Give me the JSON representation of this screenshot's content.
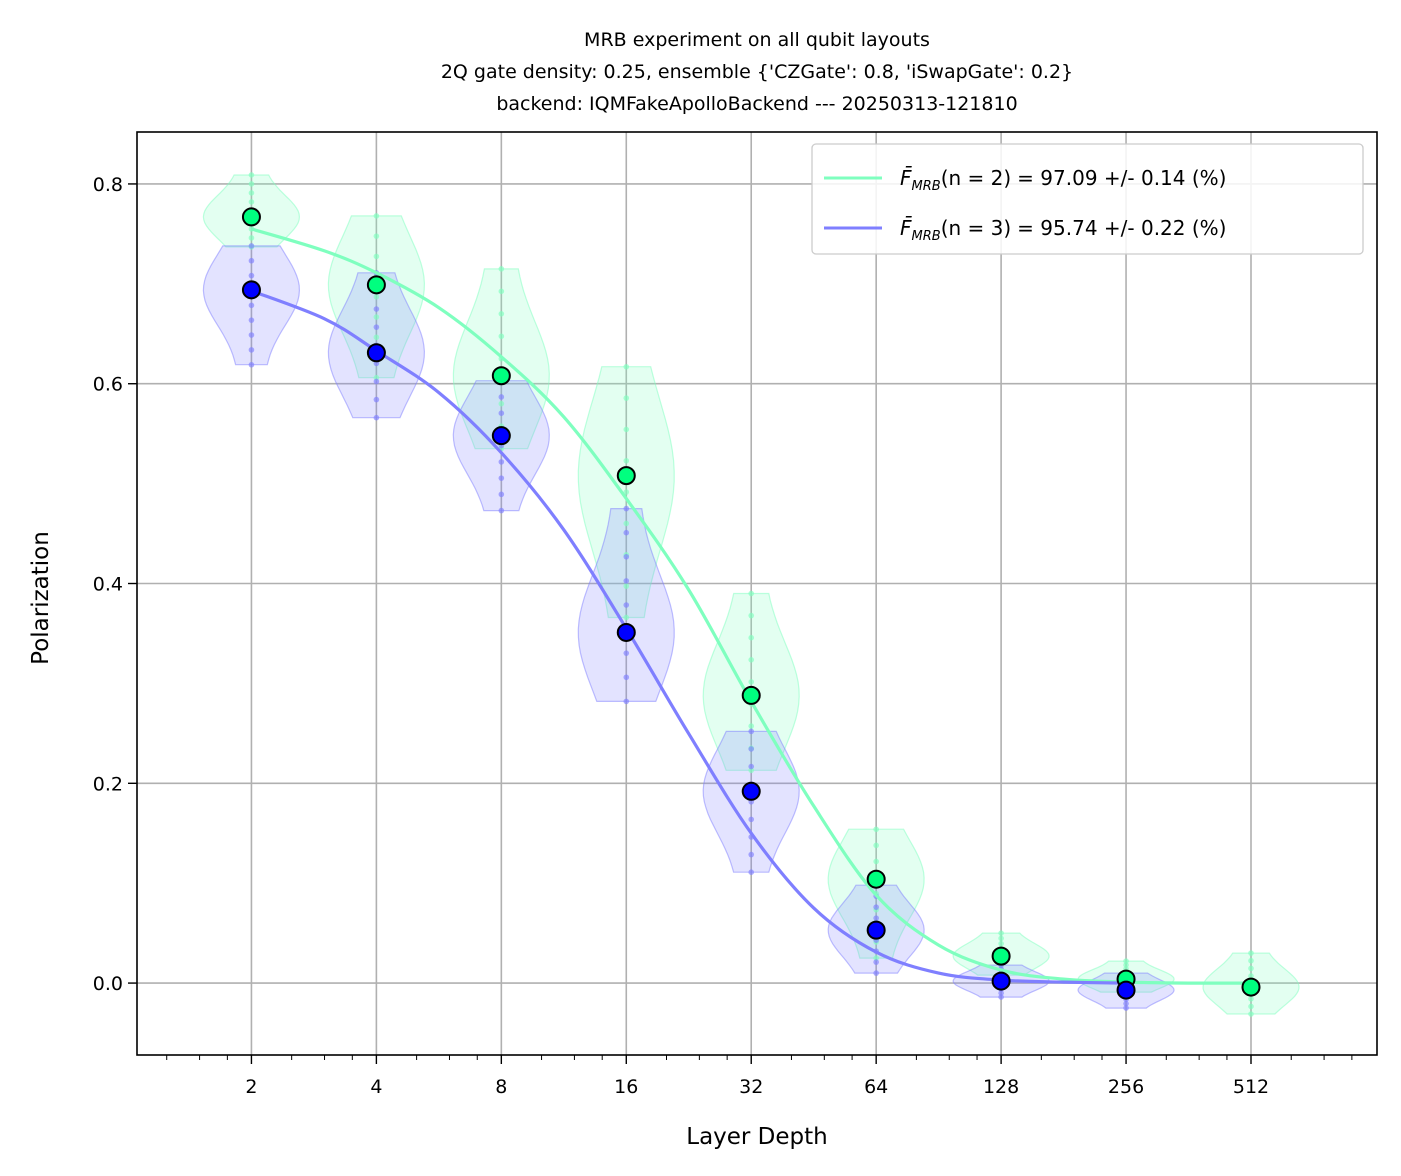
{
  "chart_data": {
    "type": "scatter",
    "title_lines": [
      "MRB experiment on all qubit layouts",
      "2Q gate density: 0.25, ensemble {'CZGate': 0.8, 'iSwapGate': 0.2}",
      "backend: IQMFakeApolloBackend --- 20250313-121810"
    ],
    "xlabel": "Layer Depth",
    "ylabel": "Polarization",
    "xscale": "log2",
    "xlim": [
      1.06,
      1030
    ],
    "ylim": [
      -0.072,
      0.852
    ],
    "x_ticks": [
      2,
      4,
      8,
      16,
      32,
      64,
      128,
      256,
      512
    ],
    "x_tick_labels": [
      "2",
      "4",
      "8",
      "16",
      "32",
      "64",
      "128",
      "256",
      "512"
    ],
    "y_ticks": [
      0.0,
      0.2,
      0.4,
      0.6,
      0.8
    ],
    "y_tick_labels": [
      "0.0",
      "0.2",
      "0.4",
      "0.6",
      "0.8"
    ],
    "grid": true,
    "legend_position": "top-right",
    "series": [
      {
        "name": "n=2",
        "legend_label": "= 97.09 +/- 0.14 (%)",
        "legend_symbol": "F̄",
        "legend_sub": "MRB",
        "legend_arg": "(n = 2)",
        "color": "#7fffbf",
        "marker_color": "#00ff7f",
        "depths": [
          2,
          4,
          8,
          16,
          32,
          64,
          128,
          256,
          512
        ],
        "mean_values": [
          0.767,
          0.699,
          0.608,
          0.508,
          0.288,
          0.104,
          0.027,
          0.004,
          -0.004
        ],
        "fit_curve": {
          "x": [
            2,
            3,
            4,
            5.66,
            8,
            11.3,
            16,
            22.6,
            32,
            45.3,
            64,
            90.5,
            128,
            181,
            256,
            362,
            512
          ],
          "y": [
            0.755,
            0.733,
            0.711,
            0.676,
            0.627,
            0.567,
            0.485,
            0.394,
            0.282,
            0.177,
            0.088,
            0.038,
            0.013,
            0.004,
            0.001,
            0.0,
            0.0
          ]
        },
        "violins": [
          {
            "x": 2,
            "min": 0.737,
            "max": 0.809
          },
          {
            "x": 4,
            "min": 0.606,
            "max": 0.768
          },
          {
            "x": 8,
            "min": 0.535,
            "max": 0.715
          },
          {
            "x": 16,
            "min": 0.366,
            "max": 0.617
          },
          {
            "x": 32,
            "min": 0.213,
            "max": 0.39
          },
          {
            "x": 64,
            "min": 0.025,
            "max": 0.154
          },
          {
            "x": 128,
            "min": 0.008,
            "max": 0.05
          },
          {
            "x": 256,
            "min": -0.009,
            "max": 0.022
          },
          {
            "x": 512,
            "min": -0.031,
            "max": 0.03
          }
        ]
      },
      {
        "name": "n=3",
        "legend_label": "= 95.74 +/- 0.22 (%)",
        "legend_symbol": "F̄",
        "legend_sub": "MRB",
        "legend_arg": "(n = 3)",
        "color": "#7f7fff",
        "marker_color": "#0000ff",
        "depths": [
          2,
          4,
          8,
          16,
          32,
          64,
          128,
          256
        ],
        "mean_values": [
          0.694,
          0.631,
          0.548,
          0.351,
          0.192,
          0.053,
          0.002,
          -0.007
        ],
        "fit_curve": {
          "x": [
            2,
            3,
            4,
            5.66,
            8,
            11.3,
            16,
            22.6,
            32,
            45.3,
            64,
            90.5,
            128,
            181,
            256
          ],
          "y": [
            0.693,
            0.665,
            0.633,
            0.591,
            0.531,
            0.454,
            0.355,
            0.25,
            0.15,
            0.075,
            0.031,
            0.01,
            0.003,
            0.001,
            0.0
          ]
        },
        "violins": [
          {
            "x": 2,
            "min": 0.619,
            "max": 0.738
          },
          {
            "x": 4,
            "min": 0.566,
            "max": 0.711
          },
          {
            "x": 8,
            "min": 0.473,
            "max": 0.603
          },
          {
            "x": 16,
            "min": 0.282,
            "max": 0.475
          },
          {
            "x": 32,
            "min": 0.111,
            "max": 0.252
          },
          {
            "x": 64,
            "min": 0.01,
            "max": 0.098
          },
          {
            "x": 128,
            "min": -0.014,
            "max": 0.018
          },
          {
            "x": 256,
            "min": -0.025,
            "max": 0.01
          }
        ]
      }
    ]
  }
}
